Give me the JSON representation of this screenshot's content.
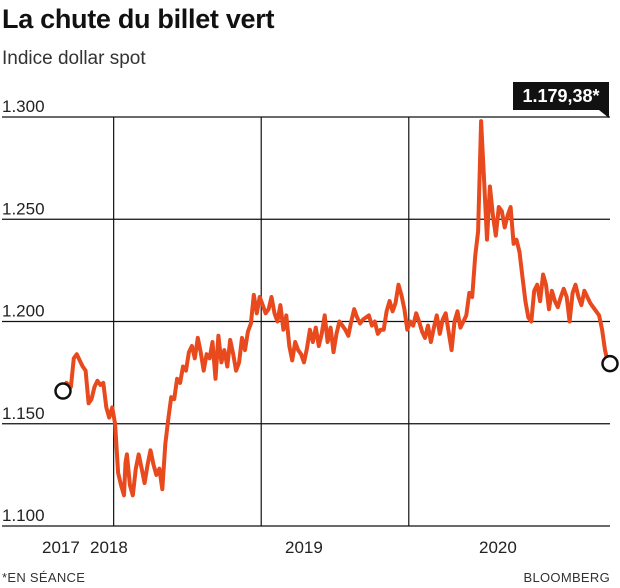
{
  "header": {
    "title": "La chute du billet vert",
    "subtitle": "Indice dollar spot"
  },
  "footer": {
    "note": "*EN SÉANCE",
    "source": "BLOOMBERG"
  },
  "colors": {
    "line": "#e8491d",
    "grid": "#111111",
    "callout_bg": "#111111",
    "callout_text": "#ffffff"
  },
  "chart_data": {
    "type": "line",
    "title": "La chute du billet vert",
    "subtitle": "Indice dollar spot",
    "xlabel": "",
    "ylabel": "",
    "ylim": [
      1.1,
      1.3
    ],
    "xlim": [
      2016.9,
      2020.6
    ],
    "y_ticks": [
      1.3,
      1.25,
      1.2,
      1.15,
      1.1
    ],
    "y_tick_labels": [
      "1.300",
      "1.250",
      "1.200",
      "1.150",
      "1.100"
    ],
    "x_ticks": [
      2017.0,
      2017.25,
      2018.25,
      2019.25
    ],
    "x_tick_labels": [
      "2017 2018",
      "",
      "2019",
      "2020"
    ],
    "x_label_positions": [
      2016.93,
      2017.25,
      2018.25,
      2019.25
    ],
    "x_label_texts": [
      "2017",
      "2018",
      "2019",
      "2020"
    ],
    "grid": true,
    "callout": {
      "text": "1.179,38*",
      "x": 2020.6,
      "y": 1.1794
    },
    "start_marker": {
      "x": 2016.9,
      "y": 1.166
    },
    "end_marker": {
      "x": 2020.6,
      "y": 1.1794
    },
    "series": [
      {
        "name": "",
        "points": [
          [
            2016.9,
            1.166
          ],
          [
            2016.93,
            1.17
          ],
          [
            2016.96,
            1.168
          ],
          [
            2016.98,
            1.182
          ],
          [
            2017.0,
            1.184
          ],
          [
            2017.02,
            1.181
          ],
          [
            2017.04,
            1.178
          ],
          [
            2017.06,
            1.176
          ],
          [
            2017.08,
            1.16
          ],
          [
            2017.1,
            1.162
          ],
          [
            2017.12,
            1.168
          ],
          [
            2017.14,
            1.171
          ],
          [
            2017.16,
            1.169
          ],
          [
            2017.18,
            1.17
          ],
          [
            2017.2,
            1.158
          ],
          [
            2017.22,
            1.153
          ],
          [
            2017.24,
            1.158
          ],
          [
            2017.26,
            1.15
          ],
          [
            2017.28,
            1.126
          ],
          [
            2017.3,
            1.12
          ],
          [
            2017.32,
            1.115
          ],
          [
            2017.33,
            1.131
          ],
          [
            2017.34,
            1.135
          ],
          [
            2017.36,
            1.12
          ],
          [
            2017.38,
            1.115
          ],
          [
            2017.4,
            1.128
          ],
          [
            2017.42,
            1.135
          ],
          [
            2017.44,
            1.128
          ],
          [
            2017.46,
            1.121
          ],
          [
            2017.48,
            1.13
          ],
          [
            2017.5,
            1.137
          ],
          [
            2017.52,
            1.13
          ],
          [
            2017.54,
            1.125
          ],
          [
            2017.56,
            1.128
          ],
          [
            2017.58,
            1.118
          ],
          [
            2017.6,
            1.14
          ],
          [
            2017.62,
            1.152
          ],
          [
            2017.64,
            1.163
          ],
          [
            2017.66,
            1.162
          ],
          [
            2017.68,
            1.172
          ],
          [
            2017.7,
            1.17
          ],
          [
            2017.72,
            1.178
          ],
          [
            2017.74,
            1.176
          ],
          [
            2017.76,
            1.185
          ],
          [
            2017.78,
            1.188
          ],
          [
            2017.8,
            1.182
          ],
          [
            2017.82,
            1.192
          ],
          [
            2017.84,
            1.185
          ],
          [
            2017.86,
            1.176
          ],
          [
            2017.88,
            1.184
          ],
          [
            2017.9,
            1.182
          ],
          [
            2017.92,
            1.19
          ],
          [
            2017.94,
            1.172
          ],
          [
            2017.96,
            1.193
          ],
          [
            2017.98,
            1.18
          ],
          [
            2018.0,
            1.186
          ],
          [
            2018.02,
            1.178
          ],
          [
            2018.04,
            1.191
          ],
          [
            2018.06,
            1.184
          ],
          [
            2018.08,
            1.176
          ],
          [
            2018.1,
            1.18
          ],
          [
            2018.12,
            1.192
          ],
          [
            2018.14,
            1.186
          ],
          [
            2018.16,
            1.195
          ],
          [
            2018.18,
            1.199
          ],
          [
            2018.2,
            1.213
          ],
          [
            2018.22,
            1.204
          ],
          [
            2018.24,
            1.212
          ],
          [
            2018.26,
            1.208
          ],
          [
            2018.28,
            1.204
          ],
          [
            2018.3,
            1.206
          ],
          [
            2018.32,
            1.212
          ],
          [
            2018.34,
            1.204
          ],
          [
            2018.36,
            1.2
          ],
          [
            2018.38,
            1.208
          ],
          [
            2018.4,
            1.196
          ],
          [
            2018.42,
            1.203
          ],
          [
            2018.44,
            1.188
          ],
          [
            2018.46,
            1.181
          ],
          [
            2018.48,
            1.19
          ],
          [
            2018.5,
            1.186
          ],
          [
            2018.52,
            1.184
          ],
          [
            2018.54,
            1.18
          ],
          [
            2018.56,
            1.187
          ],
          [
            2018.58,
            1.196
          ],
          [
            2018.6,
            1.19
          ],
          [
            2018.62,
            1.197
          ],
          [
            2018.64,
            1.188
          ],
          [
            2018.66,
            1.194
          ],
          [
            2018.68,
            1.203
          ],
          [
            2018.7,
            1.19
          ],
          [
            2018.72,
            1.197
          ],
          [
            2018.74,
            1.185
          ],
          [
            2018.76,
            1.194
          ],
          [
            2018.78,
            1.2
          ],
          [
            2018.8,
            1.198
          ],
          [
            2018.82,
            1.196
          ],
          [
            2018.84,
            1.193
          ],
          [
            2018.86,
            1.2
          ],
          [
            2018.88,
            1.206
          ],
          [
            2018.9,
            1.202
          ],
          [
            2018.92,
            1.199
          ],
          [
            2018.94,
            1.201
          ],
          [
            2018.96,
            1.202
          ],
          [
            2018.98,
            1.203
          ],
          [
            2019.0,
            1.198
          ],
          [
            2019.02,
            1.2
          ],
          [
            2019.04,
            1.194
          ],
          [
            2019.06,
            1.196
          ],
          [
            2019.08,
            1.196
          ],
          [
            2019.1,
            1.205
          ],
          [
            2019.12,
            1.21
          ],
          [
            2019.14,
            1.205
          ],
          [
            2019.16,
            1.209
          ],
          [
            2019.18,
            1.218
          ],
          [
            2019.2,
            1.213
          ],
          [
            2019.22,
            1.206
          ],
          [
            2019.24,
            1.196
          ],
          [
            2019.26,
            1.2
          ],
          [
            2019.28,
            1.198
          ],
          [
            2019.3,
            1.204
          ],
          [
            2019.32,
            1.2
          ],
          [
            2019.34,
            1.195
          ],
          [
            2019.36,
            1.192
          ],
          [
            2019.38,
            1.198
          ],
          [
            2019.4,
            1.19
          ],
          [
            2019.42,
            1.197
          ],
          [
            2019.44,
            1.203
          ],
          [
            2019.46,
            1.194
          ],
          [
            2019.48,
            1.201
          ],
          [
            2019.5,
            1.204
          ],
          [
            2019.52,
            1.195
          ],
          [
            2019.54,
            1.186
          ],
          [
            2019.56,
            1.2
          ],
          [
            2019.58,
            1.205
          ],
          [
            2019.6,
            1.197
          ],
          [
            2019.62,
            1.2
          ],
          [
            2019.64,
            1.203
          ],
          [
            2019.66,
            1.214
          ],
          [
            2019.68,
            1.212
          ],
          [
            2019.7,
            1.232
          ],
          [
            2019.72,
            1.244
          ],
          [
            2019.74,
            1.298
          ],
          [
            2019.76,
            1.27
          ],
          [
            2019.78,
            1.24
          ],
          [
            2019.8,
            1.266
          ],
          [
            2019.82,
            1.252
          ],
          [
            2019.84,
            1.242
          ],
          [
            2019.86,
            1.256
          ],
          [
            2019.88,
            1.254
          ],
          [
            2019.9,
            1.246
          ],
          [
            2019.92,
            1.252
          ],
          [
            2019.94,
            1.256
          ],
          [
            2019.96,
            1.238
          ],
          [
            2019.98,
            1.24
          ],
          [
            2020.0,
            1.234
          ],
          [
            2020.02,
            1.222
          ],
          [
            2020.04,
            1.21
          ],
          [
            2020.06,
            1.202
          ],
          [
            2020.08,
            1.2
          ],
          [
            2020.1,
            1.215
          ],
          [
            2020.12,
            1.218
          ],
          [
            2020.14,
            1.21
          ],
          [
            2020.16,
            1.223
          ],
          [
            2020.18,
            1.218
          ],
          [
            2020.2,
            1.206
          ],
          [
            2020.22,
            1.215
          ],
          [
            2020.24,
            1.21
          ],
          [
            2020.26,
            1.207
          ],
          [
            2020.28,
            1.212
          ],
          [
            2020.3,
            1.216
          ],
          [
            2020.32,
            1.212
          ],
          [
            2020.34,
            1.2
          ],
          [
            2020.36,
            1.214
          ],
          [
            2020.38,
            1.218
          ],
          [
            2020.4,
            1.212
          ],
          [
            2020.42,
            1.208
          ],
          [
            2020.44,
            1.215
          ],
          [
            2020.46,
            1.212
          ],
          [
            2020.48,
            1.209
          ],
          [
            2020.5,
            1.207
          ],
          [
            2020.52,
            1.205
          ],
          [
            2020.54,
            1.203
          ],
          [
            2020.56,
            1.196
          ],
          [
            2020.58,
            1.186
          ],
          [
            2020.6,
            1.1794
          ]
        ]
      }
    ]
  }
}
